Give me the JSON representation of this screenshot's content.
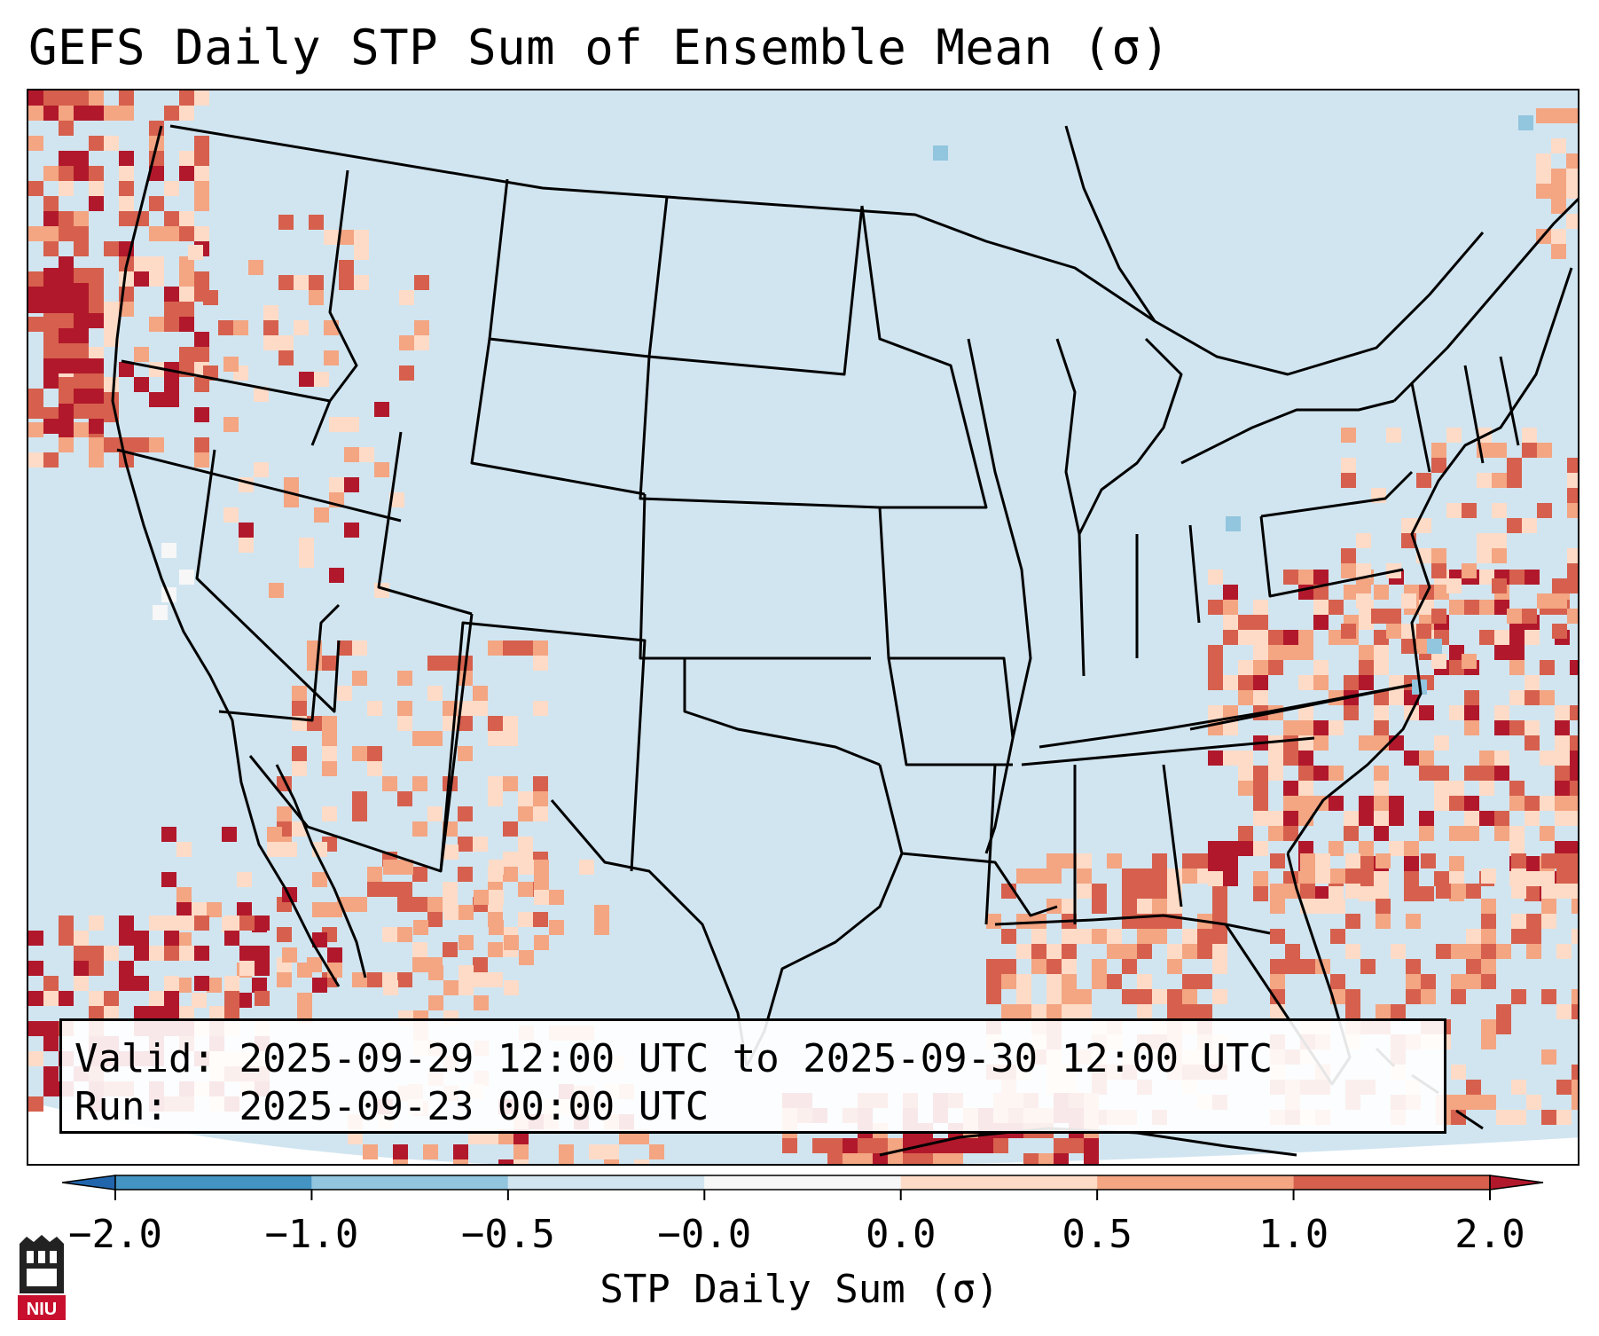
{
  "title": "GEFS Daily STP Sum of Ensemble Mean (σ)",
  "info": {
    "valid_label": "Valid:",
    "valid_value": "2025-09-29 12:00 UTC to 2025-09-30 12:00 UTC",
    "run_label": "Run:",
    "run_value": "2025-09-23 00:00 UTC"
  },
  "colorbar": {
    "label": "STP Daily Sum (σ)",
    "ticks": [
      "−2.0",
      "−1.0",
      "−0.5",
      "−0.0",
      "0.0",
      "0.5",
      "1.0",
      "2.0"
    ],
    "bins": [
      {
        "range": "< -2.0",
        "color": "#2166ac"
      },
      {
        "range": "-2.0 to -1.0",
        "color": "#4393c3"
      },
      {
        "range": "-1.0 to -0.5",
        "color": "#92c5de"
      },
      {
        "range": "-0.5 to -0.0",
        "color": "#d1e5f0"
      },
      {
        "range": "-0.0 to 0.0",
        "color": "#f7f7f7"
      },
      {
        "range": "0.0 to 0.5",
        "color": "#fddbc7"
      },
      {
        "range": "0.5 to 1.0",
        "color": "#f4a582"
      },
      {
        "range": "1.0 to 2.0",
        "color": "#d6604d"
      },
      {
        "range": "> 2.0",
        "color": "#b2182b"
      }
    ]
  },
  "map": {
    "background_color": "#d1e5f0",
    "border_color": "#000000"
  },
  "logo": {
    "text": "NIU",
    "color": "#c8102e"
  }
}
